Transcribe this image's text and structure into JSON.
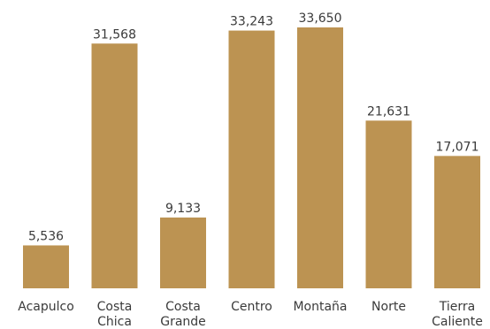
{
  "chart_data": {
    "type": "bar",
    "categories": [
      [
        "Acapulco"
      ],
      [
        "Costa",
        "Chica"
      ],
      [
        "Costa",
        "Grande"
      ],
      [
        "Centro"
      ],
      [
        "Montaña"
      ],
      [
        "Norte"
      ],
      [
        "Tierra",
        "Caliente"
      ]
    ],
    "values": [
      5536,
      31568,
      9133,
      33243,
      33650,
      21631,
      17071
    ],
    "value_labels": [
      "5,536",
      "31,568",
      "9,133",
      "33,243",
      "33,650",
      "21,631",
      "17,071"
    ],
    "title": "",
    "xlabel": "",
    "ylabel": "",
    "ylim": [
      0,
      33650
    ],
    "grid": false,
    "legend": "none",
    "colors": {
      "bar": "#bc9352",
      "text": "#3a3a3a"
    }
  }
}
